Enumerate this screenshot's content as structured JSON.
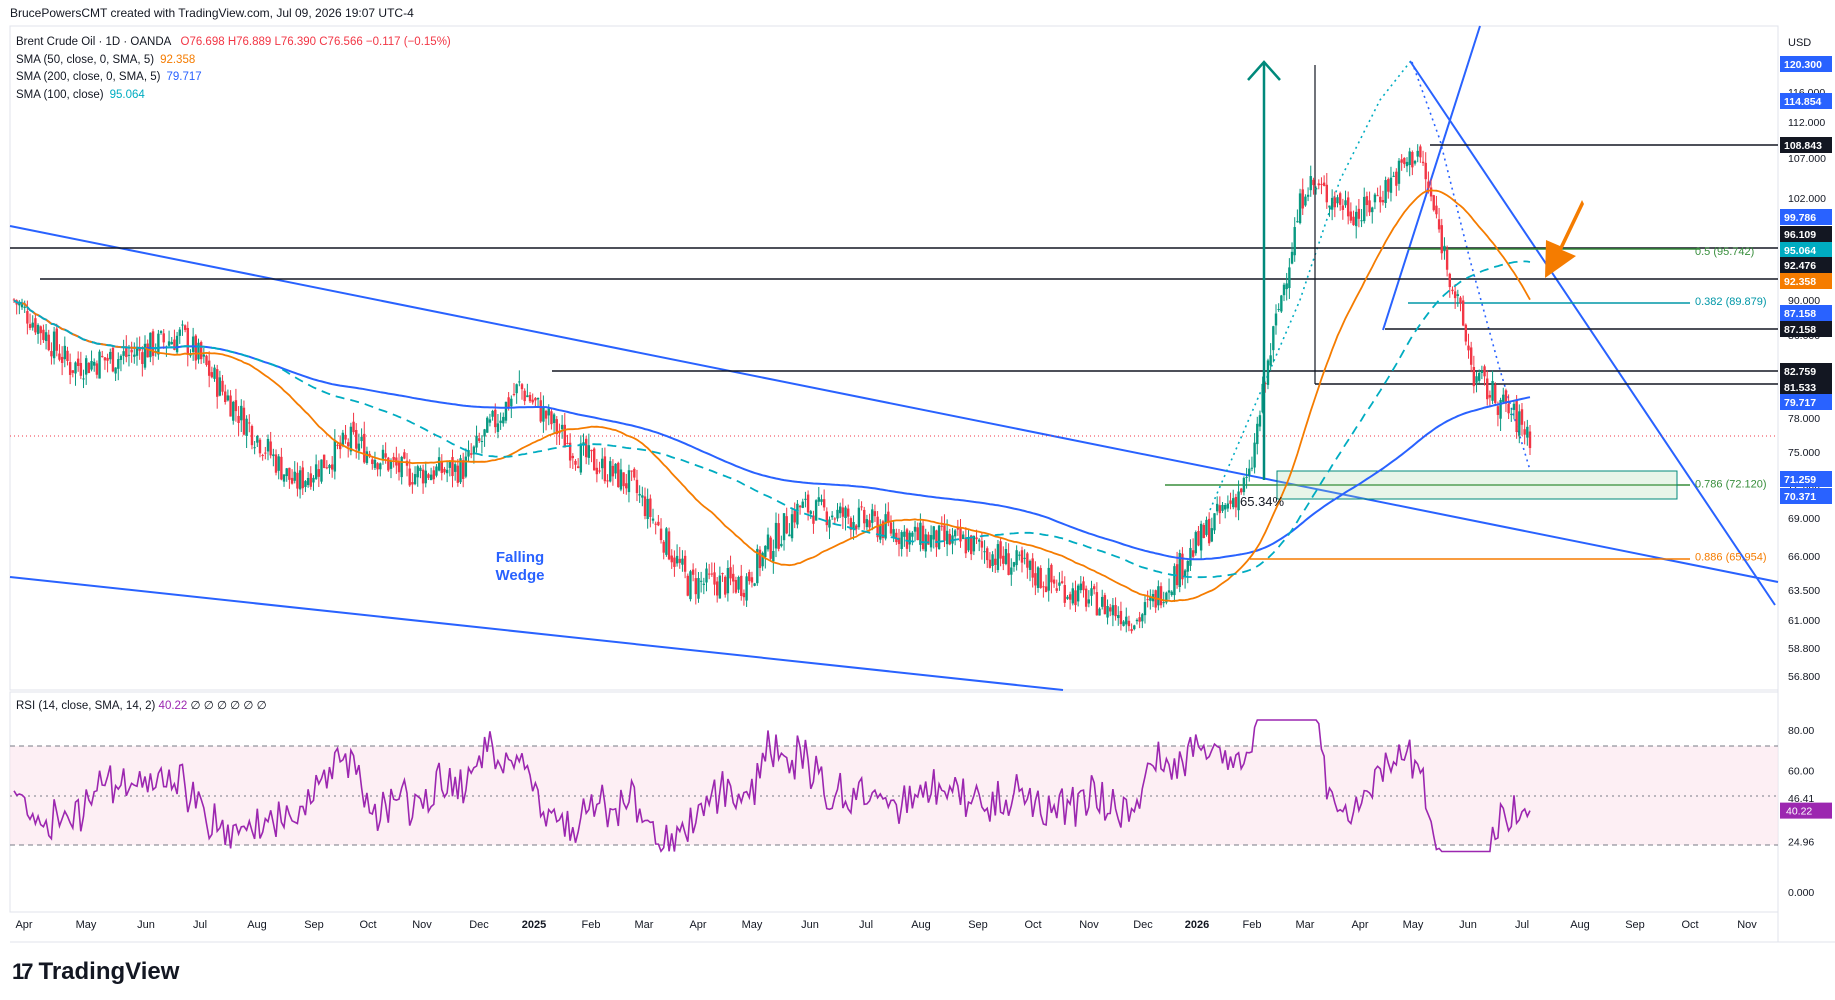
{
  "header": {
    "credit": "BrucePowersCMT created with TradingView.com, Jul 09, 2026 19:07 UTC-4"
  },
  "legend": {
    "symbol": "Brent Crude Oil · 1D · OANDA",
    "ohlc": "O76.698 H76.889 L76.390 C76.566 −0.117 (−0.15%)",
    "sma50_label": "SMA (50, close, 0, SMA, 5)",
    "sma50_value": "92.358",
    "sma200_label": "SMA (200, close, 0, SMA, 5)",
    "sma200_value": "79.717",
    "sma100_label": "SMA (100, close)",
    "sma100_value": "95.064"
  },
  "rsi_legend": {
    "label": "RSI (14, close, SMA, 14, 2)",
    "value": "40.22",
    "extra": "∅ ∅ ∅ ∅ ∅ ∅"
  },
  "currency": "USD",
  "colors": {
    "up": "#089981",
    "down": "#f23645",
    "sma50": "#f57c00",
    "sma200": "#2962ff",
    "sma100": "#00acc1",
    "rsi": "#9c27b0",
    "fib_green": "#388e3c",
    "trend": "#2962ff",
    "arrow_green": "#00897b",
    "arrow_orange": "#f57c00"
  },
  "brand": {
    "name": "TradingView"
  },
  "annotations": {
    "falling_wedge": [
      "Falling",
      "Wedge"
    ],
    "pct_label": "65.34%"
  },
  "chart_data": {
    "type": "candlestick",
    "title": "Brent Crude Oil · 1D · OANDA",
    "y_axis": {
      "ticks": [
        "116.000",
        "112.000",
        "107.000",
        "102.000",
        "90.000",
        "86.000",
        "78.000",
        "75.000",
        "72.000",
        "69.000",
        "66.000",
        "63.500",
        "61.000",
        "58.800",
        "56.800"
      ]
    },
    "x_axis": {
      "labels": [
        "Apr",
        "May",
        "Jun",
        "Jul",
        "Aug",
        "Sep",
        "Oct",
        "Nov",
        "Dec",
        "2025",
        "Feb",
        "Mar",
        "Apr",
        "May",
        "Jun",
        "Jul",
        "Aug",
        "Sep",
        "Oct",
        "Nov",
        "Dec",
        "2026",
        "Feb",
        "Mar",
        "Apr",
        "May",
        "Jun",
        "Jul",
        "Aug",
        "Sep",
        "Oct",
        "Nov"
      ]
    },
    "approx_close_path": [
      {
        "month": "Apr 2024",
        "close": 90.0
      },
      {
        "month": "May 2024",
        "close": 83.0
      },
      {
        "month": "Jun 2024",
        "close": 84.0
      },
      {
        "month": "Jul 2024",
        "close": 86.0
      },
      {
        "month": "Aug 2024",
        "close": 78.5
      },
      {
        "month": "Sep 2024",
        "close": 72.0
      },
      {
        "month": "Oct 2024",
        "close": 76.0
      },
      {
        "month": "Nov 2024",
        "close": 73.0
      },
      {
        "month": "Dec 2024",
        "close": 73.5
      },
      {
        "month": "Jan 2025",
        "close": 81.0
      },
      {
        "month": "Feb 2025",
        "close": 75.0
      },
      {
        "month": "Mar 2025",
        "close": 72.0
      },
      {
        "month": "Apr 2025",
        "close": 64.0
      },
      {
        "month": "May 2025",
        "close": 64.0
      },
      {
        "month": "Jun 2025",
        "close": 70.0
      },
      {
        "month": "Jul 2025",
        "close": 69.0
      },
      {
        "month": "Aug 2025",
        "close": 67.5
      },
      {
        "month": "Sep 2025",
        "close": 67.0
      },
      {
        "month": "Oct 2025",
        "close": 65.0
      },
      {
        "month": "Nov 2025",
        "close": 63.0
      },
      {
        "month": "Dec 2025",
        "close": 61.0
      },
      {
        "month": "Jan 2026",
        "close": 66.5
      },
      {
        "month": "Feb 2026",
        "close": 72.5
      },
      {
        "month": "Mar 2026",
        "close": 104.0
      },
      {
        "month": "Apr 2026",
        "close": 100.0
      },
      {
        "month": "May 2026",
        "close": 108.0
      },
      {
        "month": "Jun 2026",
        "close": 82.0
      },
      {
        "month": "Jul 2026",
        "close": 76.566
      }
    ],
    "price_tags": [
      {
        "value": "120.300",
        "color": "#2962ff"
      },
      {
        "value": "114.854",
        "color": "#2962ff"
      },
      {
        "value": "108.843",
        "color": "#131722"
      },
      {
        "value": "99.786",
        "color": "#2962ff"
      },
      {
        "value": "96.109",
        "color": "#131722"
      },
      {
        "value": "95.064",
        "color": "#00acc1"
      },
      {
        "value": "92.476",
        "color": "#131722"
      },
      {
        "value": "92.358",
        "color": "#f57c00"
      },
      {
        "value": "87.158",
        "color": "#2962ff"
      },
      {
        "value": "87.158",
        "color": "#131722"
      },
      {
        "value": "82.759",
        "color": "#131722"
      },
      {
        "value": "81.533",
        "color": "#131722"
      },
      {
        "value": "79.717",
        "color": "#2962ff"
      },
      {
        "value": "71.259",
        "color": "#2962ff"
      },
      {
        "value": "70.371",
        "color": "#2962ff"
      }
    ],
    "fib_levels": [
      {
        "label": "0.5 (95.742)",
        "value": 95.742
      },
      {
        "label": "0.382 (89.879)",
        "value": 89.879
      },
      {
        "label": "0.786 (72.120)",
        "value": 72.12
      },
      {
        "label": "0.886 (65.954)",
        "value": 65.954
      }
    ],
    "rsi": {
      "ticks": [
        "80.00",
        "60.00",
        "46.41",
        "24.96",
        "0.000"
      ],
      "tag": "40.22",
      "overbought": 70,
      "oversold": 30,
      "last": 40.22
    }
  }
}
